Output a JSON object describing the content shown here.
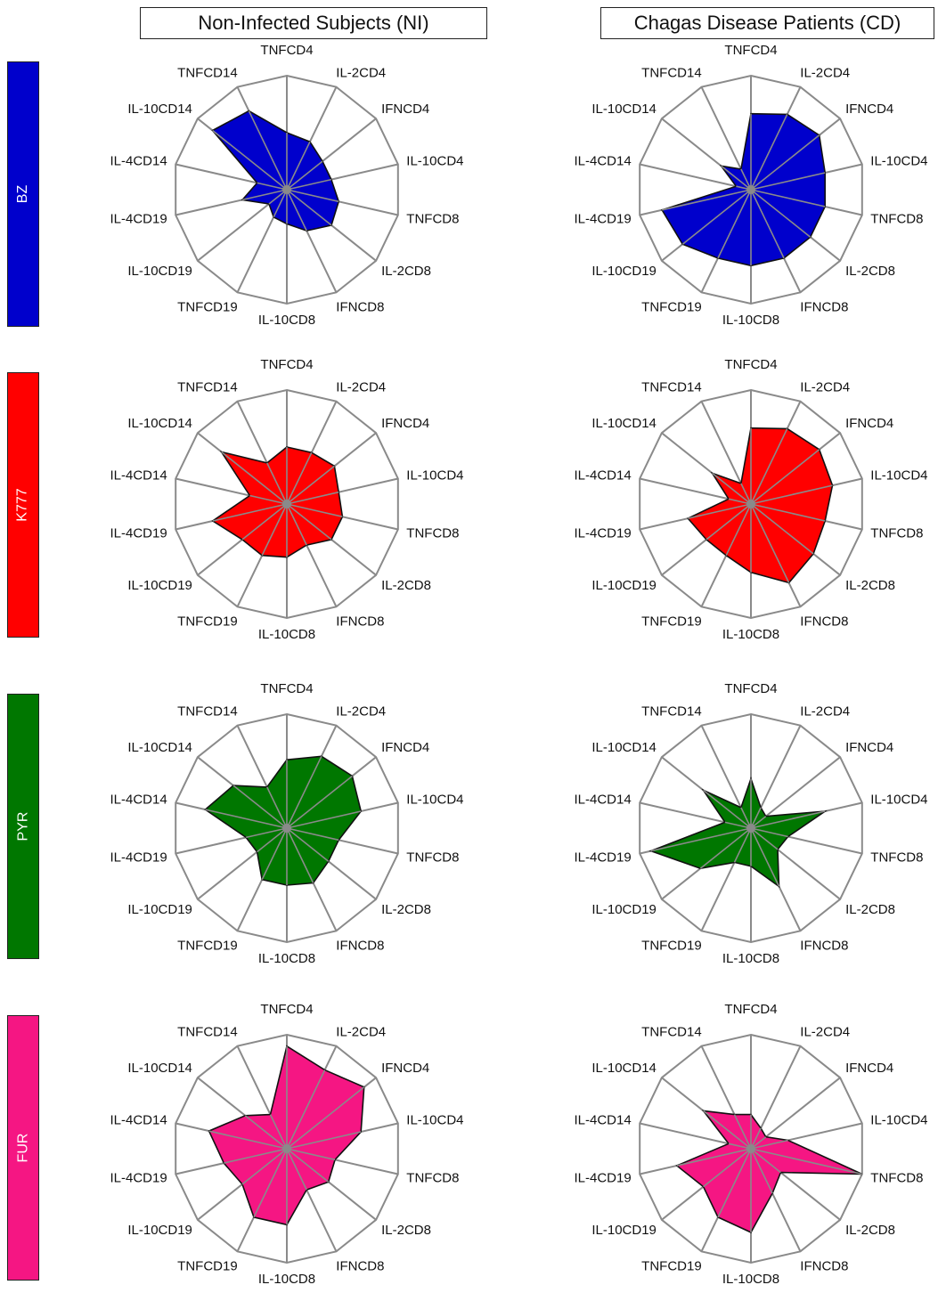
{
  "columns": [
    "Non-Infected Subjects (NI)",
    "Chagas Disease Patients (CD)"
  ],
  "rows": [
    {
      "label": "BZ",
      "color": "#0000cc"
    },
    {
      "label": "K777",
      "color": "#ff0000"
    },
    {
      "label": "PYR",
      "color": "#007700"
    },
    {
      "label": "FUR",
      "color": "#f51683"
    }
  ],
  "chart_data": {
    "type": "radar",
    "axes": [
      "TNFCD4",
      "IL-2CD4",
      "IFNCD4",
      "IL-10CD4",
      "TNFCD8",
      "IL-2CD8",
      "IFNCD8",
      "IL-10CD8",
      "TNFCD19",
      "IL-10CD19",
      "IL-4CD19",
      "IL-4CD14",
      "IL-10CD14",
      "TNFCD14"
    ],
    "rings": 3,
    "rmax": 3,
    "grid": true,
    "panels": [
      {
        "row": "BZ",
        "group": "Non-Infected Subjects (NI)",
        "values": [
          1.5,
          1.4,
          1.2,
          1.2,
          1.4,
          1.5,
          1.2,
          0.9,
          0.8,
          0.6,
          1.2,
          0.8,
          2.5,
          2.3
        ]
      },
      {
        "row": "BZ",
        "group": "Chagas Disease Patients (CD)",
        "values": [
          2.0,
          2.2,
          2.3,
          2.0,
          2.0,
          2.0,
          2.0,
          2.0,
          2.0,
          2.3,
          2.4,
          0.4,
          1.0,
          0.6
        ]
      },
      {
        "row": "K777",
        "group": "Non-Infected Subjects (NI)",
        "values": [
          1.5,
          1.5,
          1.6,
          1.4,
          1.5,
          1.5,
          1.2,
          1.4,
          1.5,
          1.5,
          2.0,
          1.0,
          2.2,
          1.2
        ]
      },
      {
        "row": "K777",
        "group": "Chagas Disease Patients (CD)",
        "values": [
          2.0,
          2.2,
          2.3,
          2.2,
          2.0,
          2.1,
          2.3,
          1.8,
          1.5,
          1.5,
          1.7,
          0.6,
          1.3,
          0.6
        ]
      },
      {
        "row": "PYR",
        "group": "Non-Infected Subjects (NI)",
        "values": [
          1.8,
          2.1,
          2.2,
          2.0,
          1.4,
          1.4,
          1.6,
          1.5,
          1.5,
          1.0,
          1.1,
          2.2,
          1.8,
          1.2
        ]
      },
      {
        "row": "PYR",
        "group": "Chagas Disease Patients (CD)",
        "values": [
          1.3,
          0.6,
          0.5,
          2.0,
          1.0,
          0.9,
          1.7,
          1.0,
          1.0,
          1.7,
          2.7,
          0.7,
          1.6,
          0.6
        ]
      },
      {
        "row": "FUR",
        "group": "Non-Infected Subjects (NI)",
        "values": [
          2.7,
          2.3,
          2.6,
          2.0,
          1.3,
          1.4,
          1.2,
          2.0,
          2.0,
          1.5,
          1.7,
          2.1,
          1.4,
          1.0
        ]
      },
      {
        "row": "FUR",
        "group": "Chagas Disease Patients (CD)",
        "values": [
          0.9,
          0.6,
          0.5,
          1.0,
          3.0,
          1.0,
          1.3,
          2.2,
          2.0,
          1.6,
          2.0,
          0.6,
          1.6,
          1.0
        ]
      }
    ]
  }
}
